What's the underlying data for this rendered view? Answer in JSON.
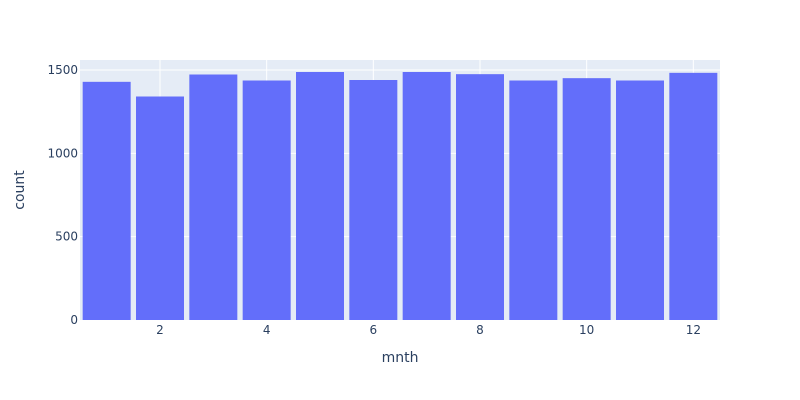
{
  "chart_data": {
    "type": "bar",
    "x": [
      1,
      2,
      3,
      4,
      5,
      6,
      7,
      8,
      9,
      10,
      11,
      12
    ],
    "values": [
      1429,
      1341,
      1473,
      1437,
      1488,
      1440,
      1488,
      1475,
      1437,
      1451,
      1437,
      1483
    ],
    "xlabel": "mnth",
    "ylabel": "count",
    "xlim": [
      0.5,
      12.5
    ],
    "ylim": [
      0,
      1560
    ],
    "x_ticks": [
      2,
      4,
      6,
      8,
      10,
      12
    ],
    "y_ticks": [
      0,
      500,
      1000,
      1500
    ],
    "grid": true,
    "colors": {
      "bar": "#636efa",
      "plot_background": "#e5ecf6",
      "gridline": "#ffffff",
      "text": "#2a3f5f"
    }
  }
}
